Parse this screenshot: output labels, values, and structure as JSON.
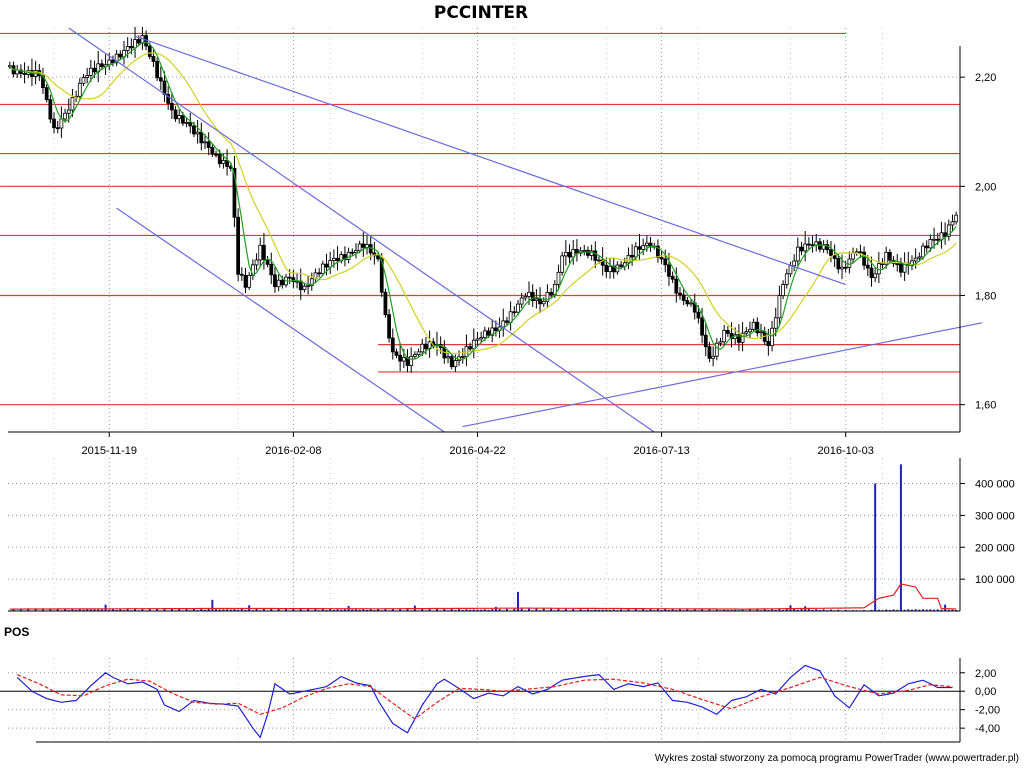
{
  "chart_data": [
    {
      "type": "candlestick",
      "title": "PCCINTER",
      "ylim": [
        1.55,
        2.29
      ],
      "yticks": [
        1.6,
        1.8,
        2.0,
        2.2
      ],
      "ytick_labels": [
        "1,60",
        "1,80",
        "2,00",
        "2,20"
      ],
      "xticks": [
        {
          "label": "2015-11-19",
          "index": 27
        },
        {
          "label": "2016-02-08",
          "index": 77
        },
        {
          "label": "2016-04-22",
          "index": 127
        },
        {
          "label": "2016-07-13",
          "index": 177
        },
        {
          "label": "2016-10-03",
          "index": 227
        }
      ],
      "n_sessions": 258,
      "grid": true,
      "close_series": [
        {
          "i": 0,
          "v": 2.22
        },
        {
          "i": 8,
          "v": 2.2
        },
        {
          "i": 12,
          "v": 2.1
        },
        {
          "i": 16,
          "v": 2.15
        },
        {
          "i": 20,
          "v": 2.2
        },
        {
          "i": 26,
          "v": 2.22
        },
        {
          "i": 32,
          "v": 2.26
        },
        {
          "i": 36,
          "v": 2.27
        },
        {
          "i": 40,
          "v": 2.2
        },
        {
          "i": 44,
          "v": 2.14
        },
        {
          "i": 48,
          "v": 2.12
        },
        {
          "i": 52,
          "v": 2.08
        },
        {
          "i": 56,
          "v": 2.05
        },
        {
          "i": 60,
          "v": 2.04
        },
        {
          "i": 62,
          "v": 1.85
        },
        {
          "i": 64,
          "v": 1.82
        },
        {
          "i": 68,
          "v": 1.88
        },
        {
          "i": 72,
          "v": 1.82
        },
        {
          "i": 76,
          "v": 1.84
        },
        {
          "i": 80,
          "v": 1.81
        },
        {
          "i": 84,
          "v": 1.84
        },
        {
          "i": 88,
          "v": 1.87
        },
        {
          "i": 92,
          "v": 1.88
        },
        {
          "i": 96,
          "v": 1.89
        },
        {
          "i": 100,
          "v": 1.86
        },
        {
          "i": 102,
          "v": 1.76
        },
        {
          "i": 104,
          "v": 1.7
        },
        {
          "i": 108,
          "v": 1.68
        },
        {
          "i": 112,
          "v": 1.7
        },
        {
          "i": 116,
          "v": 1.71
        },
        {
          "i": 120,
          "v": 1.68
        },
        {
          "i": 124,
          "v": 1.7
        },
        {
          "i": 128,
          "v": 1.72
        },
        {
          "i": 132,
          "v": 1.74
        },
        {
          "i": 136,
          "v": 1.77
        },
        {
          "i": 140,
          "v": 1.8
        },
        {
          "i": 144,
          "v": 1.78
        },
        {
          "i": 148,
          "v": 1.82
        },
        {
          "i": 150,
          "v": 1.88
        },
        {
          "i": 154,
          "v": 1.88
        },
        {
          "i": 158,
          "v": 1.87
        },
        {
          "i": 162,
          "v": 1.85
        },
        {
          "i": 166,
          "v": 1.86
        },
        {
          "i": 170,
          "v": 1.88
        },
        {
          "i": 174,
          "v": 1.89
        },
        {
          "i": 178,
          "v": 1.86
        },
        {
          "i": 182,
          "v": 1.8
        },
        {
          "i": 186,
          "v": 1.77
        },
        {
          "i": 190,
          "v": 1.68
        },
        {
          "i": 194,
          "v": 1.74
        },
        {
          "i": 198,
          "v": 1.72
        },
        {
          "i": 202,
          "v": 1.74
        },
        {
          "i": 206,
          "v": 1.71
        },
        {
          "i": 208,
          "v": 1.77
        },
        {
          "i": 210,
          "v": 1.83
        },
        {
          "i": 214,
          "v": 1.88
        },
        {
          "i": 218,
          "v": 1.89
        },
        {
          "i": 222,
          "v": 1.89
        },
        {
          "i": 226,
          "v": 1.85
        },
        {
          "i": 230,
          "v": 1.88
        },
        {
          "i": 234,
          "v": 1.83
        },
        {
          "i": 238,
          "v": 1.88
        },
        {
          "i": 242,
          "v": 1.85
        },
        {
          "i": 246,
          "v": 1.86
        },
        {
          "i": 250,
          "v": 1.9
        },
        {
          "i": 254,
          "v": 1.92
        },
        {
          "i": 257,
          "v": 1.95
        }
      ],
      "horizontal_levels": [
        {
          "v": 2.28,
          "to_index": 227
        },
        {
          "v": 2.15,
          "to_index": 258
        },
        {
          "v": 2.06,
          "to_index": 258
        },
        {
          "v": 2.0,
          "to_index": 258
        },
        {
          "v": 1.91,
          "to_index": 258
        },
        {
          "v": 1.8,
          "to_index": 258
        },
        {
          "v": 1.71,
          "from_index": 100,
          "to_index": 258
        },
        {
          "v": 1.66,
          "from_index": 100,
          "to_index": 258
        },
        {
          "v": 1.6,
          "to_index": 258
        }
      ],
      "trend_lines": [
        {
          "from": {
            "i": 16,
            "v": 2.29
          },
          "to": {
            "i": 175,
            "v": 1.55
          }
        },
        {
          "from": {
            "i": 34,
            "v": 2.275
          },
          "to": {
            "i": 227,
            "v": 1.82
          }
        },
        {
          "from": {
            "i": 29,
            "v": 1.96
          },
          "to": {
            "i": 118,
            "v": 1.55
          }
        },
        {
          "from": {
            "i": 123,
            "v": 1.56
          },
          "to": {
            "i": 264,
            "v": 1.75
          }
        }
      ],
      "colors": {
        "grid": "#9a9a9a",
        "levels": "#e23a3a",
        "trend": "#6a6add",
        "fast_ma": "#22a022",
        "slow_ma": "#d4d020",
        "candle": "#000000"
      }
    },
    {
      "type": "bar",
      "series": "volume",
      "ylim": [
        0,
        480000
      ],
      "yticks": [
        100000,
        200000,
        300000,
        400000
      ],
      "ytick_labels": [
        "100 000",
        "200 000",
        "300 000",
        "400 000"
      ],
      "spikes": [
        {
          "i": 235,
          "v": 400000
        },
        {
          "i": 242,
          "v": 460000
        },
        {
          "i": 138,
          "v": 60000
        },
        {
          "i": 55,
          "v": 35000
        },
        {
          "i": 26,
          "v": 20000
        },
        {
          "i": 65,
          "v": 18000
        },
        {
          "i": 92,
          "v": 16000
        },
        {
          "i": 110,
          "v": 17000
        },
        {
          "i": 132,
          "v": 13000
        },
        {
          "i": 212,
          "v": 18000
        },
        {
          "i": 216,
          "v": 15000
        },
        {
          "i": 254,
          "v": 20000
        }
      ],
      "baseline_volume": 5000,
      "avg_line": [
        {
          "i": 0,
          "v": 6000
        },
        {
          "i": 60,
          "v": 8000
        },
        {
          "i": 100,
          "v": 7000
        },
        {
          "i": 140,
          "v": 9000
        },
        {
          "i": 200,
          "v": 6000
        },
        {
          "i": 232,
          "v": 10000
        },
        {
          "i": 236,
          "v": 40000
        },
        {
          "i": 240,
          "v": 50000
        },
        {
          "i": 242,
          "v": 85000
        },
        {
          "i": 246,
          "v": 75000
        },
        {
          "i": 248,
          "v": 40000
        },
        {
          "i": 252,
          "v": 40000
        },
        {
          "i": 253,
          "v": 8000
        },
        {
          "i": 258,
          "v": 6000
        }
      ],
      "colors": {
        "bars": "#2020c0",
        "avg": "#e02020"
      }
    },
    {
      "type": "line",
      "title": "POS",
      "ylim": [
        -5.5,
        3.6
      ],
      "yticks": [
        2,
        0,
        -2,
        -4
      ],
      "ytick_labels": [
        "2,00",
        "0,00",
        "-2,00",
        "-4,00"
      ],
      "series": [
        {
          "points": [
            {
              "i": 2,
              "v": 1.5
            },
            {
              "i": 6,
              "v": 0.0
            },
            {
              "i": 10,
              "v": -0.8
            },
            {
              "i": 14,
              "v": -1.2
            },
            {
              "i": 18,
              "v": -1.0
            },
            {
              "i": 22,
              "v": 0.6
            },
            {
              "i": 26,
              "v": 2.0
            },
            {
              "i": 28,
              "v": 1.5
            },
            {
              "i": 32,
              "v": 0.8
            },
            {
              "i": 36,
              "v": 1.0
            },
            {
              "i": 40,
              "v": 0.2
            },
            {
              "i": 42,
              "v": -1.5
            },
            {
              "i": 46,
              "v": -2.2
            },
            {
              "i": 50,
              "v": -1.0
            },
            {
              "i": 54,
              "v": -1.3
            },
            {
              "i": 58,
              "v": -1.4
            },
            {
              "i": 62,
              "v": -1.6
            },
            {
              "i": 66,
              "v": -4.0
            },
            {
              "i": 68,
              "v": -5.0
            },
            {
              "i": 70,
              "v": -2.5
            },
            {
              "i": 72,
              "v": 0.8
            },
            {
              "i": 76,
              "v": -0.3
            },
            {
              "i": 80,
              "v": 0.0
            },
            {
              "i": 86,
              "v": 0.5
            },
            {
              "i": 90,
              "v": 1.6
            },
            {
              "i": 94,
              "v": 0.9
            },
            {
              "i": 98,
              "v": 0.6
            },
            {
              "i": 100,
              "v": -1.0
            },
            {
              "i": 104,
              "v": -3.5
            },
            {
              "i": 108,
              "v": -4.5
            },
            {
              "i": 112,
              "v": -1.5
            },
            {
              "i": 116,
              "v": 0.8
            },
            {
              "i": 118,
              "v": 1.3
            },
            {
              "i": 122,
              "v": 0.3
            },
            {
              "i": 126,
              "v": -0.8
            },
            {
              "i": 130,
              "v": -0.2
            },
            {
              "i": 134,
              "v": -0.5
            },
            {
              "i": 138,
              "v": 0.5
            },
            {
              "i": 142,
              "v": -0.3
            },
            {
              "i": 146,
              "v": 0.2
            },
            {
              "i": 150,
              "v": 1.2
            },
            {
              "i": 156,
              "v": 1.6
            },
            {
              "i": 160,
              "v": 1.8
            },
            {
              "i": 164,
              "v": 0.2
            },
            {
              "i": 168,
              "v": 0.8
            },
            {
              "i": 172,
              "v": 0.5
            },
            {
              "i": 176,
              "v": 0.9
            },
            {
              "i": 180,
              "v": -1.0
            },
            {
              "i": 184,
              "v": -1.2
            },
            {
              "i": 188,
              "v": -1.7
            },
            {
              "i": 192,
              "v": -2.5
            },
            {
              "i": 196,
              "v": -1.0
            },
            {
              "i": 200,
              "v": -0.6
            },
            {
              "i": 204,
              "v": 0.2
            },
            {
              "i": 208,
              "v": -0.3
            },
            {
              "i": 212,
              "v": 1.5
            },
            {
              "i": 216,
              "v": 2.8
            },
            {
              "i": 220,
              "v": 2.2
            },
            {
              "i": 224,
              "v": -0.5
            },
            {
              "i": 228,
              "v": -1.8
            },
            {
              "i": 232,
              "v": 0.7
            },
            {
              "i": 236,
              "v": -0.5
            },
            {
              "i": 240,
              "v": -0.2
            },
            {
              "i": 244,
              "v": 0.8
            },
            {
              "i": 248,
              "v": 1.2
            },
            {
              "i": 252,
              "v": 0.4
            },
            {
              "i": 256,
              "v": 0.4
            }
          ]
        },
        {
          "dashed": true,
          "points": [
            {
              "i": 2,
              "v": 1.8
            },
            {
              "i": 8,
              "v": 0.8
            },
            {
              "i": 14,
              "v": -0.4
            },
            {
              "i": 20,
              "v": -0.5
            },
            {
              "i": 26,
              "v": 0.6
            },
            {
              "i": 32,
              "v": 1.3
            },
            {
              "i": 38,
              "v": 1.1
            },
            {
              "i": 44,
              "v": -0.2
            },
            {
              "i": 50,
              "v": -1.2
            },
            {
              "i": 56,
              "v": -1.4
            },
            {
              "i": 62,
              "v": -1.3
            },
            {
              "i": 68,
              "v": -2.5
            },
            {
              "i": 74,
              "v": -1.8
            },
            {
              "i": 80,
              "v": -0.6
            },
            {
              "i": 86,
              "v": 0.3
            },
            {
              "i": 92,
              "v": 0.8
            },
            {
              "i": 98,
              "v": 0.5
            },
            {
              "i": 104,
              "v": -1.3
            },
            {
              "i": 110,
              "v": -3.0
            },
            {
              "i": 116,
              "v": -1.2
            },
            {
              "i": 122,
              "v": 0.3
            },
            {
              "i": 128,
              "v": 0.2
            },
            {
              "i": 134,
              "v": 0.0
            },
            {
              "i": 140,
              "v": 0.2
            },
            {
              "i": 148,
              "v": 0.5
            },
            {
              "i": 156,
              "v": 1.2
            },
            {
              "i": 164,
              "v": 1.3
            },
            {
              "i": 172,
              "v": 0.9
            },
            {
              "i": 180,
              "v": 0.2
            },
            {
              "i": 188,
              "v": -0.9
            },
            {
              "i": 196,
              "v": -1.9
            },
            {
              "i": 204,
              "v": -0.6
            },
            {
              "i": 212,
              "v": 0.4
            },
            {
              "i": 220,
              "v": 1.5
            },
            {
              "i": 228,
              "v": 0.5
            },
            {
              "i": 236,
              "v": -0.3
            },
            {
              "i": 244,
              "v": 0.1
            },
            {
              "i": 250,
              "v": 0.7
            },
            {
              "i": 256,
              "v": 0.5
            }
          ]
        }
      ],
      "colors": {
        "main": "#2020d0",
        "signal": "#e02020",
        "zero": "#000000"
      }
    }
  ],
  "footer": "Wykres został stworzony za pomocą programu PowerTrader (www.powertrader.pl)"
}
